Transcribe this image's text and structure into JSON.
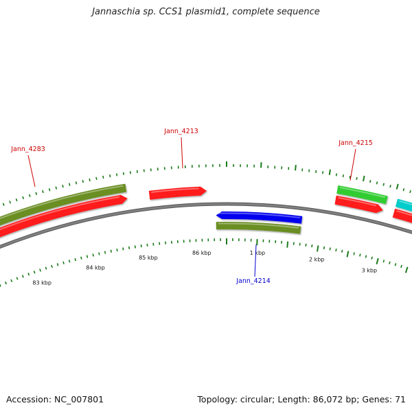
{
  "title": "Jannaschia sp. CCS1 plasmid1, complete sequence",
  "footer": {
    "accession": "Accession: NC_007801",
    "summary": "Topology: circular; Length: 86,072 bp; Genes: 71"
  },
  "colors": {
    "forward_cds": "#ff1a1a",
    "reverse_cds": "#0000ee",
    "cog_olive": "#6b8e23",
    "cog_green": "#33cc33",
    "cog_cyan": "#00cccc",
    "backbone": "#808080",
    "tick": "#1a7a1a",
    "label_red": "#cc0000",
    "label_blue": "#0000cc"
  },
  "scale_labels": [
    "83 kbp",
    "84 kbp",
    "85 kbp",
    "86 kbp",
    "1 kbp",
    "2 kbp",
    "3 kbp"
  ],
  "gene_labels": [
    {
      "name": "Jann_4283",
      "strand": "forward"
    },
    {
      "name": "Jann_4213",
      "strand": "forward"
    },
    {
      "name": "Jann_4215",
      "strand": "forward"
    },
    {
      "name": "Jann_4214",
      "strand": "reverse"
    }
  ]
}
